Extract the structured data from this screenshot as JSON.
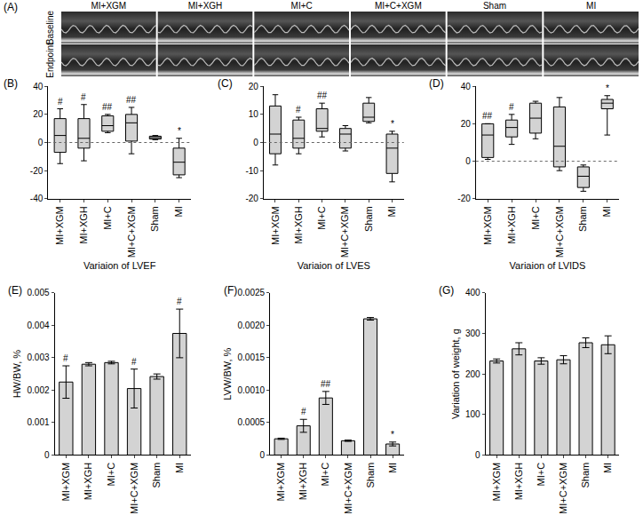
{
  "panel_a": {
    "label": "(A)",
    "rows": [
      "Baseline",
      "Endpoint"
    ],
    "columns": [
      "MI+XGM",
      "MI+XGH",
      "MI+C",
      "MI+C+XGM",
      "Sham",
      "MI"
    ]
  },
  "chart_data": [
    {
      "type": "box",
      "panel": "(B)",
      "x_label": "Variaion of LVEF",
      "categories": [
        "MI+XGM",
        "MI+XGH",
        "MI+C",
        "MI+C+XGM",
        "Sham",
        "MI"
      ],
      "lower_whisker": [
        -15,
        -13,
        7,
        -8,
        2,
        -25
      ],
      "q1": [
        -7,
        -4,
        8,
        1,
        2.5,
        -23
      ],
      "median": [
        5,
        3,
        12,
        14,
        3.5,
        -14
      ],
      "q3": [
        17,
        17,
        19,
        20,
        4.5,
        -4
      ],
      "upper_whisker": [
        24,
        27,
        20,
        25,
        5,
        3
      ],
      "marks": [
        "#",
        "#",
        "##",
        "##",
        null,
        "*"
      ],
      "reference_line": 0,
      "color": "#d3d3d3",
      "ylim": [
        -40,
        40
      ],
      "yticks": [
        -40,
        -20,
        0,
        20,
        40
      ],
      "grid": false
    },
    {
      "type": "box",
      "panel": "(C)",
      "x_label": "Variaion of LVES",
      "categories": [
        "MI+XGM",
        "MI+XGH",
        "MI+C",
        "MI+C+XGM",
        "Sham",
        "MI"
      ],
      "lower_whisker": [
        -8,
        -4,
        2,
        -3,
        7,
        -14
      ],
      "q1": [
        -4,
        -2,
        4,
        -2,
        7.5,
        -11
      ],
      "median": [
        3,
        1.5,
        5,
        3,
        9,
        -2
      ],
      "q3": [
        13,
        8,
        12,
        5,
        14,
        3
      ],
      "upper_whisker": [
        17,
        9,
        14,
        6,
        16,
        4
      ],
      "marks": [
        null,
        "#",
        "##",
        null,
        null,
        "*"
      ],
      "reference_line": 0,
      "color": "#d3d3d3",
      "ylim": [
        -20,
        20
      ],
      "yticks": [
        -20,
        -10,
        0,
        10,
        20
      ],
      "grid": false
    },
    {
      "type": "box",
      "panel": "(D)",
      "x_label": "Variaion of LVIDS",
      "categories": [
        "MI+XGM",
        "MI+XGH",
        "MI+C",
        "MI+C+XGM",
        "Sham",
        "MI"
      ],
      "lower_whisker": [
        1,
        9,
        12,
        -5,
        -16,
        14
      ],
      "q1": [
        2,
        13,
        15,
        -3,
        -14,
        28
      ],
      "median": [
        14,
        18,
        23,
        8,
        -8,
        31
      ],
      "q3": [
        20,
        22,
        31,
        29,
        -3,
        33
      ],
      "upper_whisker": [
        20,
        25,
        32,
        34,
        -2,
        35
      ],
      "marks": [
        "##",
        "#",
        null,
        null,
        null,
        "*"
      ],
      "reference_line": 0,
      "color": "#d3d3d3",
      "ylim": [
        -20,
        40
      ],
      "yticks": [
        -20,
        0,
        20,
        40
      ],
      "grid": false
    },
    {
      "type": "bar",
      "panel": "(E)",
      "y_label": "HW/BW, %",
      "categories": [
        "MI+XGM",
        "MI+XGH",
        "MI+C",
        "MI+C+XGM",
        "Sham",
        "MI"
      ],
      "values": [
        0.00225,
        0.0028,
        0.00285,
        0.00205,
        0.00242,
        0.00375
      ],
      "errors": [
        0.0005,
        5e-05,
        4e-05,
        0.0006,
        8e-05,
        0.00075
      ],
      "marks": [
        "#",
        null,
        null,
        "#",
        null,
        "#"
      ],
      "color": "#d3d3d3",
      "ylim": [
        0,
        0.005
      ],
      "yticks": [
        0,
        0.001,
        0.002,
        0.003,
        0.004,
        0.005
      ],
      "grid": false
    },
    {
      "type": "bar",
      "panel": "(F)",
      "y_label": "LVW/BW, %",
      "categories": [
        "MI+XGM",
        "MI+XGH",
        "MI+C",
        "MI+C+XGM",
        "Sham",
        "MI"
      ],
      "values": [
        0.00025,
        0.00045,
        0.00088,
        0.00022,
        0.0021,
        0.00017
      ],
      "errors": [
        1e-05,
        0.0001,
        0.0001,
        1e-05,
        2e-05,
        3e-05
      ],
      "marks": [
        null,
        "#",
        "##",
        null,
        null,
        "*"
      ],
      "color": "#d3d3d3",
      "ylim": [
        0,
        0.0025
      ],
      "yticks": [
        0,
        0.0005,
        {
          "value": 0.001,
          "label": "0.0010"
        },
        0.0015,
        {
          "value": 0.002,
          "label": "0.0020"
        },
        0.0025
      ],
      "grid": false
    },
    {
      "type": "bar",
      "panel": "(G)",
      "y_label": "Variation of weight, g",
      "categories": [
        "MI+XGM",
        "MI+XGH",
        "MI+C",
        "MI+C+XGM",
        "Sham",
        "MI"
      ],
      "values": [
        232,
        262,
        232,
        235,
        277,
        272
      ],
      "errors": [
        5,
        15,
        8,
        10,
        12,
        22
      ],
      "color": "#d3d3d3",
      "ylim": [
        0,
        400
      ],
      "yticks": [
        0,
        100,
        200,
        300,
        400
      ],
      "grid": false
    }
  ]
}
